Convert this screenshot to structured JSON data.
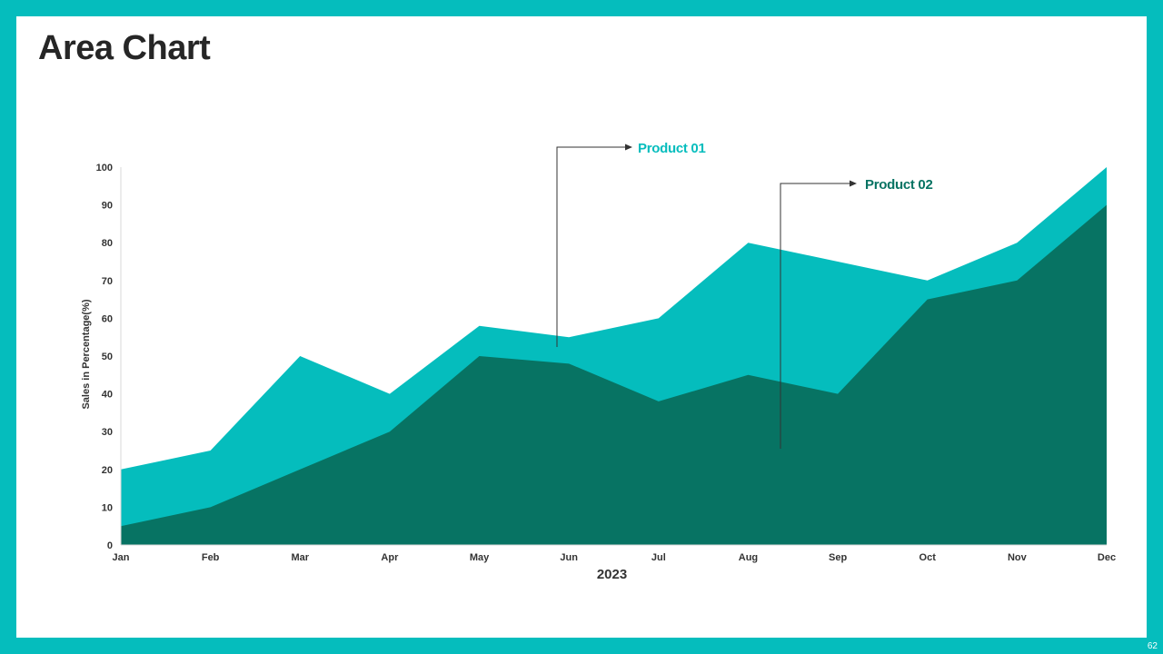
{
  "slide": {
    "title": "Area Chart",
    "page_number": "62"
  },
  "colors": {
    "frame": "#05BDBD",
    "product1": "#05BDBD",
    "product2": "#077363",
    "axis": "#D9D9D9",
    "text": "#333333"
  },
  "chart_data": {
    "type": "area",
    "title": "",
    "xlabel": "2023",
    "ylabel": "Sales in Percentage(%)",
    "ylim": [
      0,
      100
    ],
    "yticks": [
      0,
      10,
      20,
      30,
      40,
      50,
      60,
      70,
      80,
      90,
      100
    ],
    "categories": [
      "Jan",
      "Feb",
      "Mar",
      "Apr",
      "May",
      "Jun",
      "Jul",
      "Aug",
      "Sep",
      "Oct",
      "Nov",
      "Dec"
    ],
    "series": [
      {
        "name": "Product 01",
        "color": "#05BDBD",
        "values": [
          20,
          25,
          50,
          40,
          58,
          55,
          60,
          80,
          75,
          70,
          80,
          100
        ]
      },
      {
        "name": "Product 02",
        "color": "#077363",
        "values": [
          5,
          10,
          20,
          30,
          50,
          48,
          38,
          45,
          40,
          65,
          70,
          90
        ]
      }
    ],
    "legend": "callouts"
  }
}
